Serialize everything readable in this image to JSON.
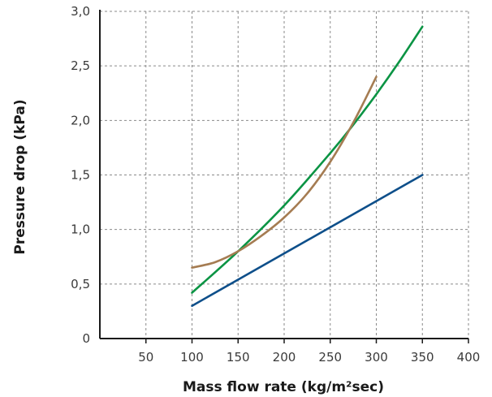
{
  "chart_data": {
    "type": "line",
    "xlabel": "Mass flow rate (kg/m²sec)",
    "ylabel": "Pressure drop (kPa)",
    "xlim": [
      0,
      400
    ],
    "ylim": [
      0,
      3.0
    ],
    "grid": true,
    "grid_style": "dotted",
    "x_ticks": [
      "50",
      "100",
      "150",
      "200",
      "250",
      "300",
      "350",
      "400"
    ],
    "x_tick_values": [
      50,
      100,
      150,
      200,
      250,
      300,
      350,
      400
    ],
    "y_ticks": [
      "0",
      "0,5",
      "1,0",
      "1,5",
      "2,0",
      "2,5",
      "3,0"
    ],
    "y_tick_values": [
      0,
      0.5,
      1.0,
      1.5,
      2.0,
      2.5,
      3.0
    ],
    "series": [
      {
        "color": "#0e4f8a",
        "x": [
          100,
          350
        ],
        "y": [
          0.3,
          1.5
        ]
      },
      {
        "color": "#0b9444",
        "x": [
          100,
          150,
          200,
          250,
          275,
          300,
          325,
          350
        ],
        "y": [
          0.42,
          0.8,
          1.22,
          1.7,
          1.96,
          2.24,
          2.54,
          2.86
        ]
      },
      {
        "color": "#a57c52",
        "x": [
          100,
          125,
          150,
          175,
          200,
          225,
          250,
          275,
          300
        ],
        "y": [
          0.65,
          0.7,
          0.8,
          0.94,
          1.11,
          1.33,
          1.62,
          1.98,
          2.4
        ]
      }
    ]
  }
}
